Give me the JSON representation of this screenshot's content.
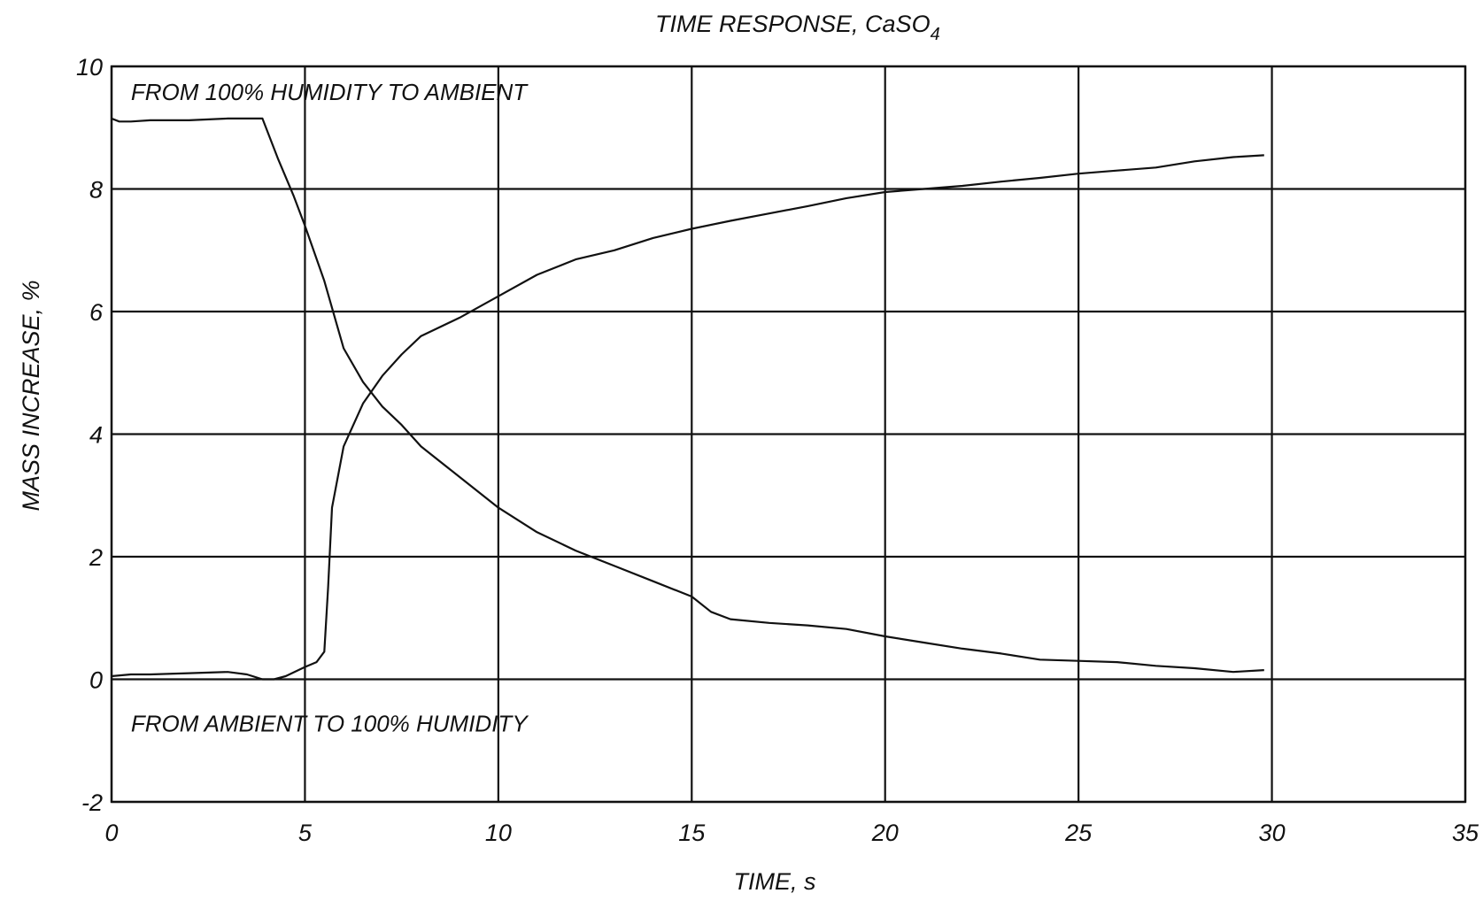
{
  "chart_data": {
    "type": "line",
    "title": "TIME RESPONSE, CaSO",
    "title_subscript": "4",
    "xlabel": "TIME, s",
    "ylabel": "MASS INCREASE, %",
    "xlim": [
      0,
      35
    ],
    "ylim": [
      -2,
      10
    ],
    "xticks": [
      0,
      5,
      10,
      15,
      20,
      25,
      30,
      35
    ],
    "yticks": [
      -2,
      0,
      2,
      4,
      6,
      8,
      10
    ],
    "xtick_labels": [
      "0",
      "5",
      "10",
      "15",
      "20",
      "25",
      "30",
      "35"
    ],
    "ytick_labels": [
      "-2",
      "0",
      "2",
      "4",
      "6",
      "8",
      "10"
    ],
    "grid": true,
    "annotations": [
      {
        "text": "FROM 100% HUMIDITY TO AMBIENT",
        "x": 0.5,
        "y": 9.45
      },
      {
        "text": "FROM AMBIENT TO 100% HUMIDITY",
        "x": 0.5,
        "y": -0.85
      }
    ],
    "series": [
      {
        "x": [
          0,
          0.2,
          0.5,
          1,
          2,
          3,
          3.5,
          3.9,
          4.3,
          4.7,
          5.0,
          5.5,
          6.0,
          6.5,
          7.0,
          7.5,
          8.0,
          9.0,
          10.0,
          11.0,
          12.0,
          13.0,
          14.0,
          15.0,
          15.5,
          16.0,
          17.0,
          18.0,
          19.0,
          20.0,
          21.0,
          22.0,
          23.0,
          24.0,
          25.0,
          26.0,
          27.0,
          28.0,
          29.0,
          29.8
        ],
        "y": [
          9.15,
          9.1,
          9.1,
          9.12,
          9.12,
          9.15,
          9.15,
          9.15,
          8.5,
          7.9,
          7.4,
          6.5,
          5.4,
          4.85,
          4.45,
          4.15,
          3.8,
          3.3,
          2.8,
          2.4,
          2.1,
          1.85,
          1.6,
          1.35,
          1.1,
          0.98,
          0.92,
          0.88,
          0.82,
          0.7,
          0.6,
          0.5,
          0.42,
          0.32,
          0.3,
          0.28,
          0.22,
          0.18,
          0.12,
          0.15
        ]
      },
      {
        "x": [
          0,
          0.5,
          1,
          2,
          3,
          3.5,
          3.9,
          4.2,
          4.5,
          5.0,
          5.3,
          5.5,
          5.6,
          5.7,
          6.0,
          6.5,
          7.0,
          7.5,
          8.0,
          9.0,
          10.0,
          11.0,
          12.0,
          13.0,
          14.0,
          15.0,
          16.0,
          17.0,
          18.0,
          19.0,
          20.0,
          21.0,
          22.0,
          23.0,
          24.0,
          25.0,
          26.0,
          27.0,
          28.0,
          29.0,
          29.8
        ],
        "y": [
          0.05,
          0.08,
          0.08,
          0.1,
          0.12,
          0.08,
          0.0,
          0.0,
          0.05,
          0.2,
          0.28,
          0.45,
          1.5,
          2.8,
          3.8,
          4.5,
          4.95,
          5.3,
          5.6,
          5.9,
          6.25,
          6.6,
          6.85,
          7.0,
          7.2,
          7.35,
          7.48,
          7.6,
          7.72,
          7.85,
          7.95,
          8.0,
          8.05,
          8.12,
          8.18,
          8.25,
          8.3,
          8.35,
          8.45,
          8.52,
          8.55
        ]
      }
    ]
  }
}
